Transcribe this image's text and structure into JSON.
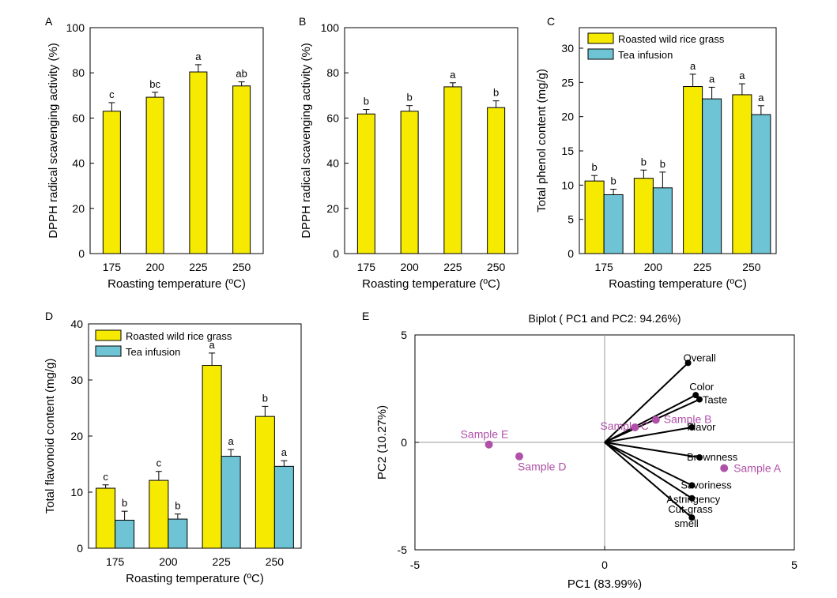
{
  "colors": {
    "yellow": "#F5EA00",
    "blue": "#6EC3D4",
    "sample": "#B050A8",
    "vector": "#000000"
  },
  "chart_data": [
    {
      "panel": "A",
      "type": "bar",
      "xlabel": "Roasting temperature (ºC)",
      "ylabel": "DPPH radical scavenging activity (%)",
      "ylim": [
        0,
        100
      ],
      "yticks": [
        0,
        20,
        40,
        60,
        80,
        100
      ],
      "categories": [
        "175",
        "200",
        "225",
        "250"
      ],
      "series": [
        {
          "values": [
            63.0,
            69.2,
            80.4,
            74.2
          ],
          "errors": [
            3.8,
            2.2,
            3.2,
            1.8
          ],
          "letters": [
            "c",
            "bc",
            "a",
            "ab"
          ],
          "color": "#F5EA00"
        }
      ]
    },
    {
      "panel": "B",
      "type": "bar",
      "xlabel": "Roasting temperature (ºC)",
      "ylabel": "DPPH radical scavenging activity (%)",
      "ylim": [
        0,
        100
      ],
      "yticks": [
        0,
        20,
        40,
        60,
        80,
        100
      ],
      "categories": [
        "175",
        "200",
        "225",
        "250"
      ],
      "series": [
        {
          "values": [
            61.8,
            63.0,
            73.8,
            64.6
          ],
          "errors": [
            2.0,
            2.5,
            1.8,
            3.0
          ],
          "letters": [
            "b",
            "b",
            "a",
            "b"
          ],
          "color": "#F5EA00"
        }
      ]
    },
    {
      "panel": "C",
      "type": "bar",
      "xlabel": "Roasting temperature (ºC)",
      "ylabel": "Total phenol content (mg/g)",
      "ylim": [
        0,
        33
      ],
      "yticks": [
        0,
        5,
        10,
        15,
        20,
        25,
        30
      ],
      "categories": [
        "175",
        "200",
        "225",
        "250"
      ],
      "legend": "top-left",
      "series": [
        {
          "name": "Roasted wild rice grass",
          "values": [
            10.6,
            11.0,
            24.4,
            23.2
          ],
          "errors": [
            0.8,
            1.2,
            1.8,
            1.6
          ],
          "letters": [
            "b",
            "b",
            "a",
            "a"
          ],
          "color": "#F5EA00"
        },
        {
          "name": "Tea infusion",
          "values": [
            8.6,
            9.6,
            22.6,
            20.3
          ],
          "errors": [
            0.8,
            2.3,
            1.7,
            1.3
          ],
          "letters": [
            "b",
            "b",
            "a",
            "a"
          ],
          "color": "#6EC3D4"
        }
      ]
    },
    {
      "panel": "D",
      "type": "bar",
      "xlabel": "Roasting temperature (ºC)",
      "ylabel": "Total flavonoid content  (mg/g)",
      "ylim": [
        0,
        40
      ],
      "yticks": [
        0,
        10,
        20,
        30,
        40
      ],
      "categories": [
        "175",
        "200",
        "225",
        "250"
      ],
      "legend": "top-left",
      "series": [
        {
          "name": "Roasted wild rice grass",
          "values": [
            10.7,
            12.1,
            32.6,
            23.5
          ],
          "errors": [
            0.6,
            1.6,
            2.2,
            1.8
          ],
          "letters": [
            "c",
            "c",
            "a",
            "b"
          ],
          "color": "#F5EA00"
        },
        {
          "name": "Tea infusion",
          "values": [
            5.0,
            5.2,
            16.4,
            14.6
          ],
          "errors": [
            1.6,
            0.9,
            1.2,
            1.0
          ],
          "letters": [
            "b",
            "b",
            "a",
            "a"
          ],
          "color": "#6EC3D4"
        }
      ]
    },
    {
      "panel": "E",
      "type": "scatter",
      "title": "Biplot ( PC1 and PC2: 94.26%)",
      "xlabel": "PC1 (83.99%)",
      "ylabel": "PC2 (10.27%)",
      "xlim": [
        -5,
        5
      ],
      "ylim": [
        -5,
        5
      ],
      "xticks": [
        -5,
        0,
        5
      ],
      "yticks": [
        -5,
        0,
        5
      ],
      "samples": [
        {
          "label": "Sample A",
          "x": 3.15,
          "y": -1.2
        },
        {
          "label": "Sample B",
          "x": 1.35,
          "y": 1.05
        },
        {
          "label": "Sample C",
          "x": 0.8,
          "y": 0.7
        },
        {
          "label": "Sample D",
          "x": -2.25,
          "y": -0.65
        },
        {
          "label": "Sample E",
          "x": -3.05,
          "y": -0.1
        }
      ],
      "vectors": [
        {
          "label": "Overall",
          "x": 2.2,
          "y": 3.7
        },
        {
          "label": "Color",
          "x": 2.4,
          "y": 2.2
        },
        {
          "label": "Taste",
          "x": 2.5,
          "y": 2.0
        },
        {
          "label": "Flavor",
          "x": 2.3,
          "y": 0.7
        },
        {
          "label": "Brownness",
          "x": 2.5,
          "y": -0.7
        },
        {
          "label": "Savoriness",
          "x": 2.3,
          "y": -2.0
        },
        {
          "label": "Astringency",
          "x": 2.3,
          "y": -2.6
        },
        {
          "label": "Cut-grass smell",
          "x": 2.3,
          "y": -3.5
        }
      ]
    }
  ]
}
